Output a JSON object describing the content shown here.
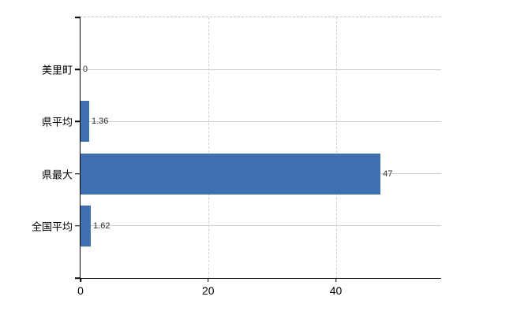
{
  "chart_data": {
    "type": "bar",
    "orientation": "horizontal",
    "title": "",
    "categories": [
      "美里町",
      "県平均",
      "県最大",
      "全国平均"
    ],
    "values": [
      0,
      1.36,
      47,
      1.62
    ],
    "value_labels": [
      "0",
      "1.36",
      "47",
      "1.62"
    ],
    "x_ticks": [
      0,
      20,
      40
    ],
    "x_tick_labels": [
      "0",
      "20",
      "40"
    ],
    "xlim": [
      0,
      56.5
    ],
    "grid": true,
    "legend": "none",
    "colors": {
      "bar": "#3e6fae",
      "hgrid": "#c9d2c9",
      "vgrid": "#d4d4d4",
      "axis": "#000000",
      "value_text": "#303030",
      "tick_text": "#000000"
    }
  }
}
